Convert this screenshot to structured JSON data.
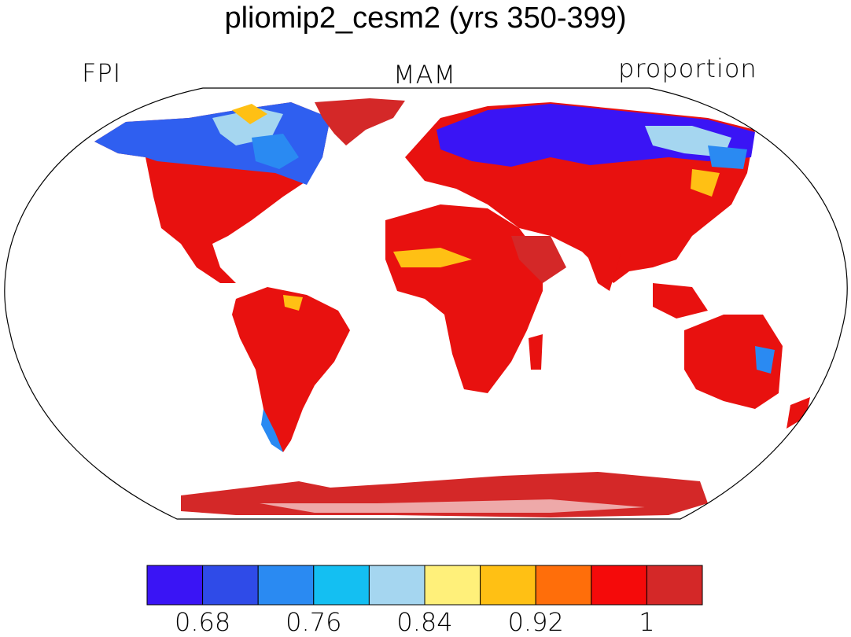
{
  "title": "pliomip2_cesm2 (yrs 350-399)",
  "left_label": "FPI",
  "center_label": "MAM",
  "right_label": "proportion",
  "colorbar": {
    "colors": [
      "#3a14f5",
      "#2f4be8",
      "#2a8af2",
      "#14bff2",
      "#a5d6f0",
      "#fff07a",
      "#ffc014",
      "#ff6e0a",
      "#f50a0a",
      "#d42828"
    ],
    "tick_labels": [
      "0.68",
      "0.76",
      "0.84",
      "0.92",
      "1"
    ]
  }
}
